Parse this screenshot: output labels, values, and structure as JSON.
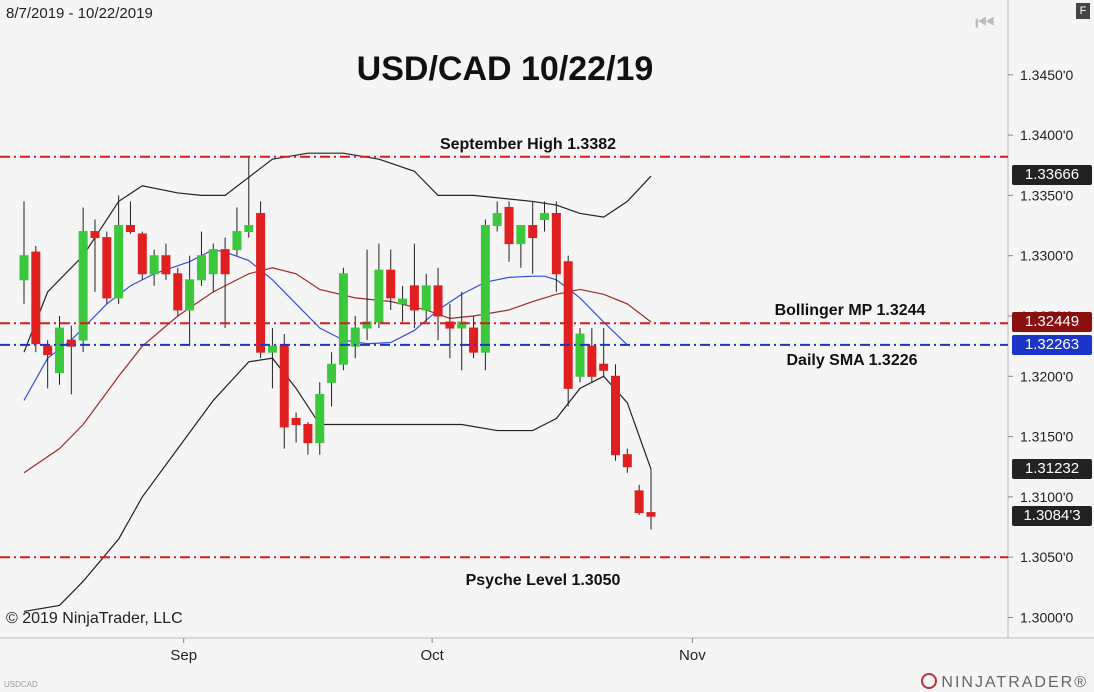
{
  "header": {
    "date_range": "8/7/2019 - 10/22/2019",
    "title": "USD/CAD 10/22/19"
  },
  "footer": {
    "copyright": "© 2019 NinjaTrader, LLC",
    "symbol": "USDCAD",
    "brand": "NINJATRADER®"
  },
  "toolbar": {
    "f_label": "F"
  },
  "colors": {
    "up": "#3cc83c",
    "down": "#e02020",
    "red_line": "#d81c1c",
    "blue_line": "#1a35c8",
    "sma_line": "#3550d8",
    "mp_line": "#a02828",
    "band": "#222222"
  },
  "chart_data": {
    "type": "candlestick",
    "x_axis": {
      "ticks": [
        {
          "label": "Sep",
          "index": 13.5
        },
        {
          "label": "Oct",
          "index": 34.5
        },
        {
          "label": "Nov",
          "index": 56.5
        }
      ]
    },
    "y_axis": {
      "ylim": [
        1.2983,
        1.3512
      ],
      "ticks": [
        "1.3000'0",
        "1.3050'0",
        "1.3100'0",
        "1.3150'0",
        "1.3200'0",
        "1.3250'0",
        "1.3300'0",
        "1.3350'0",
        "1.3400'0",
        "1.3450'0"
      ],
      "tick_values": [
        1.3,
        1.305,
        1.31,
        1.315,
        1.32,
        1.325,
        1.33,
        1.335,
        1.34,
        1.345
      ]
    },
    "candles": [
      {
        "o": 1.328,
        "h": 1.3345,
        "l": 1.326,
        "c": 1.33
      },
      {
        "o": 1.3303,
        "h": 1.3308,
        "l": 1.322,
        "c": 1.3227
      },
      {
        "o": 1.3225,
        "h": 1.323,
        "l": 1.319,
        "c": 1.3218
      },
      {
        "o": 1.3203,
        "h": 1.325,
        "l": 1.3193,
        "c": 1.324
      },
      {
        "o": 1.323,
        "h": 1.3242,
        "l": 1.3185,
        "c": 1.3225
      },
      {
        "o": 1.323,
        "h": 1.334,
        "l": 1.322,
        "c": 1.332
      },
      {
        "o": 1.332,
        "h": 1.333,
        "l": 1.327,
        "c": 1.3315
      },
      {
        "o": 1.3315,
        "h": 1.332,
        "l": 1.326,
        "c": 1.3265
      },
      {
        "o": 1.3265,
        "h": 1.335,
        "l": 1.326,
        "c": 1.3325
      },
      {
        "o": 1.3325,
        "h": 1.3345,
        "l": 1.3318,
        "c": 1.332
      },
      {
        "o": 1.3318,
        "h": 1.332,
        "l": 1.328,
        "c": 1.3285
      },
      {
        "o": 1.3285,
        "h": 1.3305,
        "l": 1.3275,
        "c": 1.33
      },
      {
        "o": 1.33,
        "h": 1.331,
        "l": 1.328,
        "c": 1.3285
      },
      {
        "o": 1.3285,
        "h": 1.329,
        "l": 1.325,
        "c": 1.3255
      },
      {
        "o": 1.3255,
        "h": 1.33,
        "l": 1.3225,
        "c": 1.328
      },
      {
        "o": 1.328,
        "h": 1.332,
        "l": 1.3275,
        "c": 1.33
      },
      {
        "o": 1.3285,
        "h": 1.331,
        "l": 1.327,
        "c": 1.3305
      },
      {
        "o": 1.3305,
        "h": 1.3315,
        "l": 1.324,
        "c": 1.3285
      },
      {
        "o": 1.3305,
        "h": 1.334,
        "l": 1.33,
        "c": 1.332
      },
      {
        "o": 1.332,
        "h": 1.3382,
        "l": 1.3315,
        "c": 1.3325
      },
      {
        "o": 1.3335,
        "h": 1.3345,
        "l": 1.3215,
        "c": 1.322
      },
      {
        "o": 1.322,
        "h": 1.324,
        "l": 1.319,
        "c": 1.3225
      },
      {
        "o": 1.3225,
        "h": 1.3235,
        "l": 1.314,
        "c": 1.3158
      },
      {
        "o": 1.3165,
        "h": 1.317,
        "l": 1.3145,
        "c": 1.316
      },
      {
        "o": 1.316,
        "h": 1.3162,
        "l": 1.3135,
        "c": 1.3145
      },
      {
        "o": 1.3145,
        "h": 1.3195,
        "l": 1.3135,
        "c": 1.3185
      },
      {
        "o": 1.3195,
        "h": 1.322,
        "l": 1.3175,
        "c": 1.321
      },
      {
        "o": 1.321,
        "h": 1.329,
        "l": 1.3205,
        "c": 1.3285
      },
      {
        "o": 1.3225,
        "h": 1.325,
        "l": 1.3215,
        "c": 1.324
      },
      {
        "o": 1.324,
        "h": 1.3305,
        "l": 1.323,
        "c": 1.3245
      },
      {
        "o": 1.3245,
        "h": 1.331,
        "l": 1.324,
        "c": 1.3288
      },
      {
        "o": 1.3288,
        "h": 1.3305,
        "l": 1.3255,
        "c": 1.3265
      },
      {
        "o": 1.326,
        "h": 1.3275,
        "l": 1.3245,
        "c": 1.3264
      },
      {
        "o": 1.3275,
        "h": 1.331,
        "l": 1.324,
        "c": 1.3255
      },
      {
        "o": 1.3255,
        "h": 1.3285,
        "l": 1.3245,
        "c": 1.3275
      },
      {
        "o": 1.3275,
        "h": 1.329,
        "l": 1.323,
        "c": 1.325
      },
      {
        "o": 1.3245,
        "h": 1.326,
        "l": 1.3215,
        "c": 1.324
      },
      {
        "o": 1.324,
        "h": 1.327,
        "l": 1.3205,
        "c": 1.3245
      },
      {
        "o": 1.324,
        "h": 1.325,
        "l": 1.3215,
        "c": 1.322
      },
      {
        "o": 1.322,
        "h": 1.333,
        "l": 1.3205,
        "c": 1.3325
      },
      {
        "o": 1.3325,
        "h": 1.3345,
        "l": 1.332,
        "c": 1.3335
      },
      {
        "o": 1.334,
        "h": 1.3345,
        "l": 1.3295,
        "c": 1.331
      },
      {
        "o": 1.331,
        "h": 1.3325,
        "l": 1.329,
        "c": 1.3325
      },
      {
        "o": 1.3325,
        "h": 1.3345,
        "l": 1.3285,
        "c": 1.3315
      },
      {
        "o": 1.333,
        "h": 1.3345,
        "l": 1.332,
        "c": 1.3335
      },
      {
        "o": 1.3335,
        "h": 1.3345,
        "l": 1.327,
        "c": 1.3285
      },
      {
        "o": 1.3295,
        "h": 1.33,
        "l": 1.3175,
        "c": 1.319
      },
      {
        "o": 1.32,
        "h": 1.324,
        "l": 1.3195,
        "c": 1.3235
      },
      {
        "o": 1.3225,
        "h": 1.324,
        "l": 1.3195,
        "c": 1.32
      },
      {
        "o": 1.321,
        "h": 1.324,
        "l": 1.32,
        "c": 1.3205
      },
      {
        "o": 1.32,
        "h": 1.321,
        "l": 1.313,
        "c": 1.3135
      },
      {
        "o": 1.3135,
        "h": 1.314,
        "l": 1.312,
        "c": 1.3125
      },
      {
        "o": 1.3105,
        "h": 1.311,
        "l": 1.3085,
        "c": 1.3087
      },
      {
        "o": 1.3087,
        "h": 1.3123,
        "l": 1.3073,
        "c": 1.3084
      }
    ],
    "bollinger_upper": [
      [
        0,
        1.322
      ],
      [
        2,
        1.327
      ],
      [
        5,
        1.33
      ],
      [
        8,
        1.3345
      ],
      [
        10,
        1.3358
      ],
      [
        13,
        1.3352
      ],
      [
        15,
        1.335
      ],
      [
        17,
        1.335
      ],
      [
        19,
        1.3365
      ],
      [
        21,
        1.338
      ],
      [
        24,
        1.3385
      ],
      [
        27,
        1.3385
      ],
      [
        30,
        1.338
      ],
      [
        33,
        1.337
      ],
      [
        35,
        1.335
      ],
      [
        38,
        1.335
      ],
      [
        41,
        1.3347
      ],
      [
        43,
        1.3345
      ],
      [
        45,
        1.3342
      ],
      [
        47,
        1.3335
      ],
      [
        49,
        1.3332
      ],
      [
        51,
        1.3345
      ],
      [
        53,
        1.3366
      ]
    ],
    "bollinger_lower": [
      [
        0,
        1.3005
      ],
      [
        3,
        1.301
      ],
      [
        5,
        1.303
      ],
      [
        8,
        1.3065
      ],
      [
        10,
        1.31
      ],
      [
        13,
        1.314
      ],
      [
        16,
        1.318
      ],
      [
        19,
        1.3212
      ],
      [
        21,
        1.3215
      ],
      [
        23,
        1.319
      ],
      [
        25,
        1.316
      ],
      [
        28,
        1.316
      ],
      [
        31,
        1.316
      ],
      [
        34,
        1.316
      ],
      [
        37,
        1.316
      ],
      [
        40,
        1.3155
      ],
      [
        43,
        1.3155
      ],
      [
        45,
        1.3165
      ],
      [
        47,
        1.319
      ],
      [
        49,
        1.32
      ],
      [
        51,
        1.3178
      ],
      [
        53,
        1.3123
      ]
    ],
    "bollinger_mid": [
      [
        0,
        1.312
      ],
      [
        3,
        1.314
      ],
      [
        5,
        1.316
      ],
      [
        8,
        1.32
      ],
      [
        10,
        1.3225
      ],
      [
        13,
        1.325
      ],
      [
        16,
        1.327
      ],
      [
        19,
        1.3285
      ],
      [
        21,
        1.329
      ],
      [
        23,
        1.3285
      ],
      [
        25,
        1.3272
      ],
      [
        28,
        1.3265
      ],
      [
        31,
        1.3262
      ],
      [
        34,
        1.3255
      ],
      [
        36,
        1.3248
      ],
      [
        38,
        1.325
      ],
      [
        41,
        1.3255
      ],
      [
        43,
        1.3262
      ],
      [
        45,
        1.3268
      ],
      [
        47,
        1.3272
      ],
      [
        49,
        1.3268
      ],
      [
        51,
        1.326
      ],
      [
        53,
        1.3245
      ]
    ],
    "sma": [
      [
        0,
        1.318
      ],
      [
        2,
        1.3215
      ],
      [
        4,
        1.323
      ],
      [
        7,
        1.326
      ],
      [
        9,
        1.3275
      ],
      [
        11,
        1.3285
      ],
      [
        14,
        1.3295
      ],
      [
        16,
        1.3305
      ],
      [
        17,
        1.3303
      ],
      [
        19,
        1.3296
      ],
      [
        21,
        1.328
      ],
      [
        23,
        1.326
      ],
      [
        25,
        1.324
      ],
      [
        27,
        1.323
      ],
      [
        29,
        1.3227
      ],
      [
        31,
        1.3228
      ],
      [
        33,
        1.3238
      ],
      [
        35,
        1.3255
      ],
      [
        37,
        1.3268
      ],
      [
        39,
        1.3278
      ],
      [
        41,
        1.3282
      ],
      [
        43,
        1.3283
      ],
      [
        44,
        1.3283
      ],
      [
        45,
        1.328
      ],
      [
        47,
        1.3265
      ],
      [
        49,
        1.3245
      ],
      [
        51,
        1.3226
      ]
    ],
    "levels": [
      {
        "name": "September High",
        "label": "September High 1.3382",
        "value": 1.3382,
        "style": "red"
      },
      {
        "name": "Bollinger MP",
        "label": "Bollinger MP 1.3244",
        "value": 1.3244,
        "style": "red"
      },
      {
        "name": "Daily SMA",
        "label": "Daily SMA 1.3226",
        "value": 1.3226,
        "style": "blue"
      },
      {
        "name": "Psyche Level",
        "label": "Psyche Level 1.3050",
        "value": 1.305,
        "style": "red"
      }
    ],
    "price_tags": [
      {
        "label": "1.33666",
        "value": 1.33666,
        "color": "#222222"
      },
      {
        "label": "1.32449",
        "value": 1.32449,
        "color": "#8a1010"
      },
      {
        "label": "1.32263",
        "value": 1.32263,
        "color": "#1a35c8"
      },
      {
        "label": "1.31232",
        "value": 1.31232,
        "color": "#222222"
      },
      {
        "label": "1.3084'3",
        "value": 1.30843,
        "color": "#222222"
      }
    ]
  }
}
